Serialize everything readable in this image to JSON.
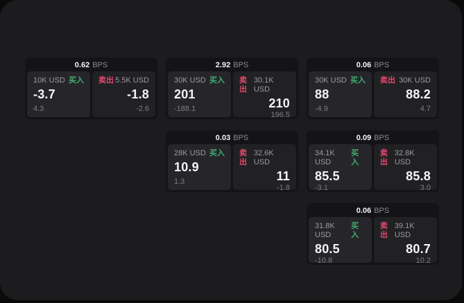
{
  "page": {
    "unit_label": "BPS",
    "buy_label": "买入",
    "sell_label": "卖出",
    "colors": {
      "buy_green": "#3fae70",
      "sell_red": "#e04a6b",
      "panel_bg": "#1c1c1e",
      "card_bg": "#141416",
      "outer_bg": "#0a0a0b"
    }
  },
  "cards": [
    {
      "bps": "0.62",
      "buy": {
        "amount": "10K USD",
        "value": "-3.7",
        "sub": "4.3"
      },
      "sell": {
        "amount": "5.5K USD",
        "value": "-1.8",
        "sub": "-2.6"
      }
    },
    {
      "bps": "2.92",
      "buy": {
        "amount": "30K USD",
        "value": "201",
        "sub": "-188.1"
      },
      "sell": {
        "amount": "30.1K USD",
        "value": "210",
        "sub": "196.5"
      }
    },
    {
      "bps": "0.06",
      "buy": {
        "amount": "30K USD",
        "value": "88",
        "sub": "-4.9"
      },
      "sell": {
        "amount": "30K USD",
        "value": "88.2",
        "sub": "4.7"
      }
    },
    {
      "bps": "0.03",
      "buy": {
        "amount": "28K USD",
        "value": "10.9",
        "sub": "1.3"
      },
      "sell": {
        "amount": "32.6K USD",
        "value": "11",
        "sub": "-1.8"
      }
    },
    {
      "bps": "0.09",
      "buy": {
        "amount": "34.1K USD",
        "value": "85.5",
        "sub": "-3.1"
      },
      "sell": {
        "amount": "32.8K USD",
        "value": "85.8",
        "sub": "3.0"
      }
    },
    {
      "bps": "0.06",
      "buy": {
        "amount": "31.8K USD",
        "value": "80.5",
        "sub": "-10.8"
      },
      "sell": {
        "amount": "39.1K USD",
        "value": "80.7",
        "sub": "10.2"
      }
    }
  ]
}
